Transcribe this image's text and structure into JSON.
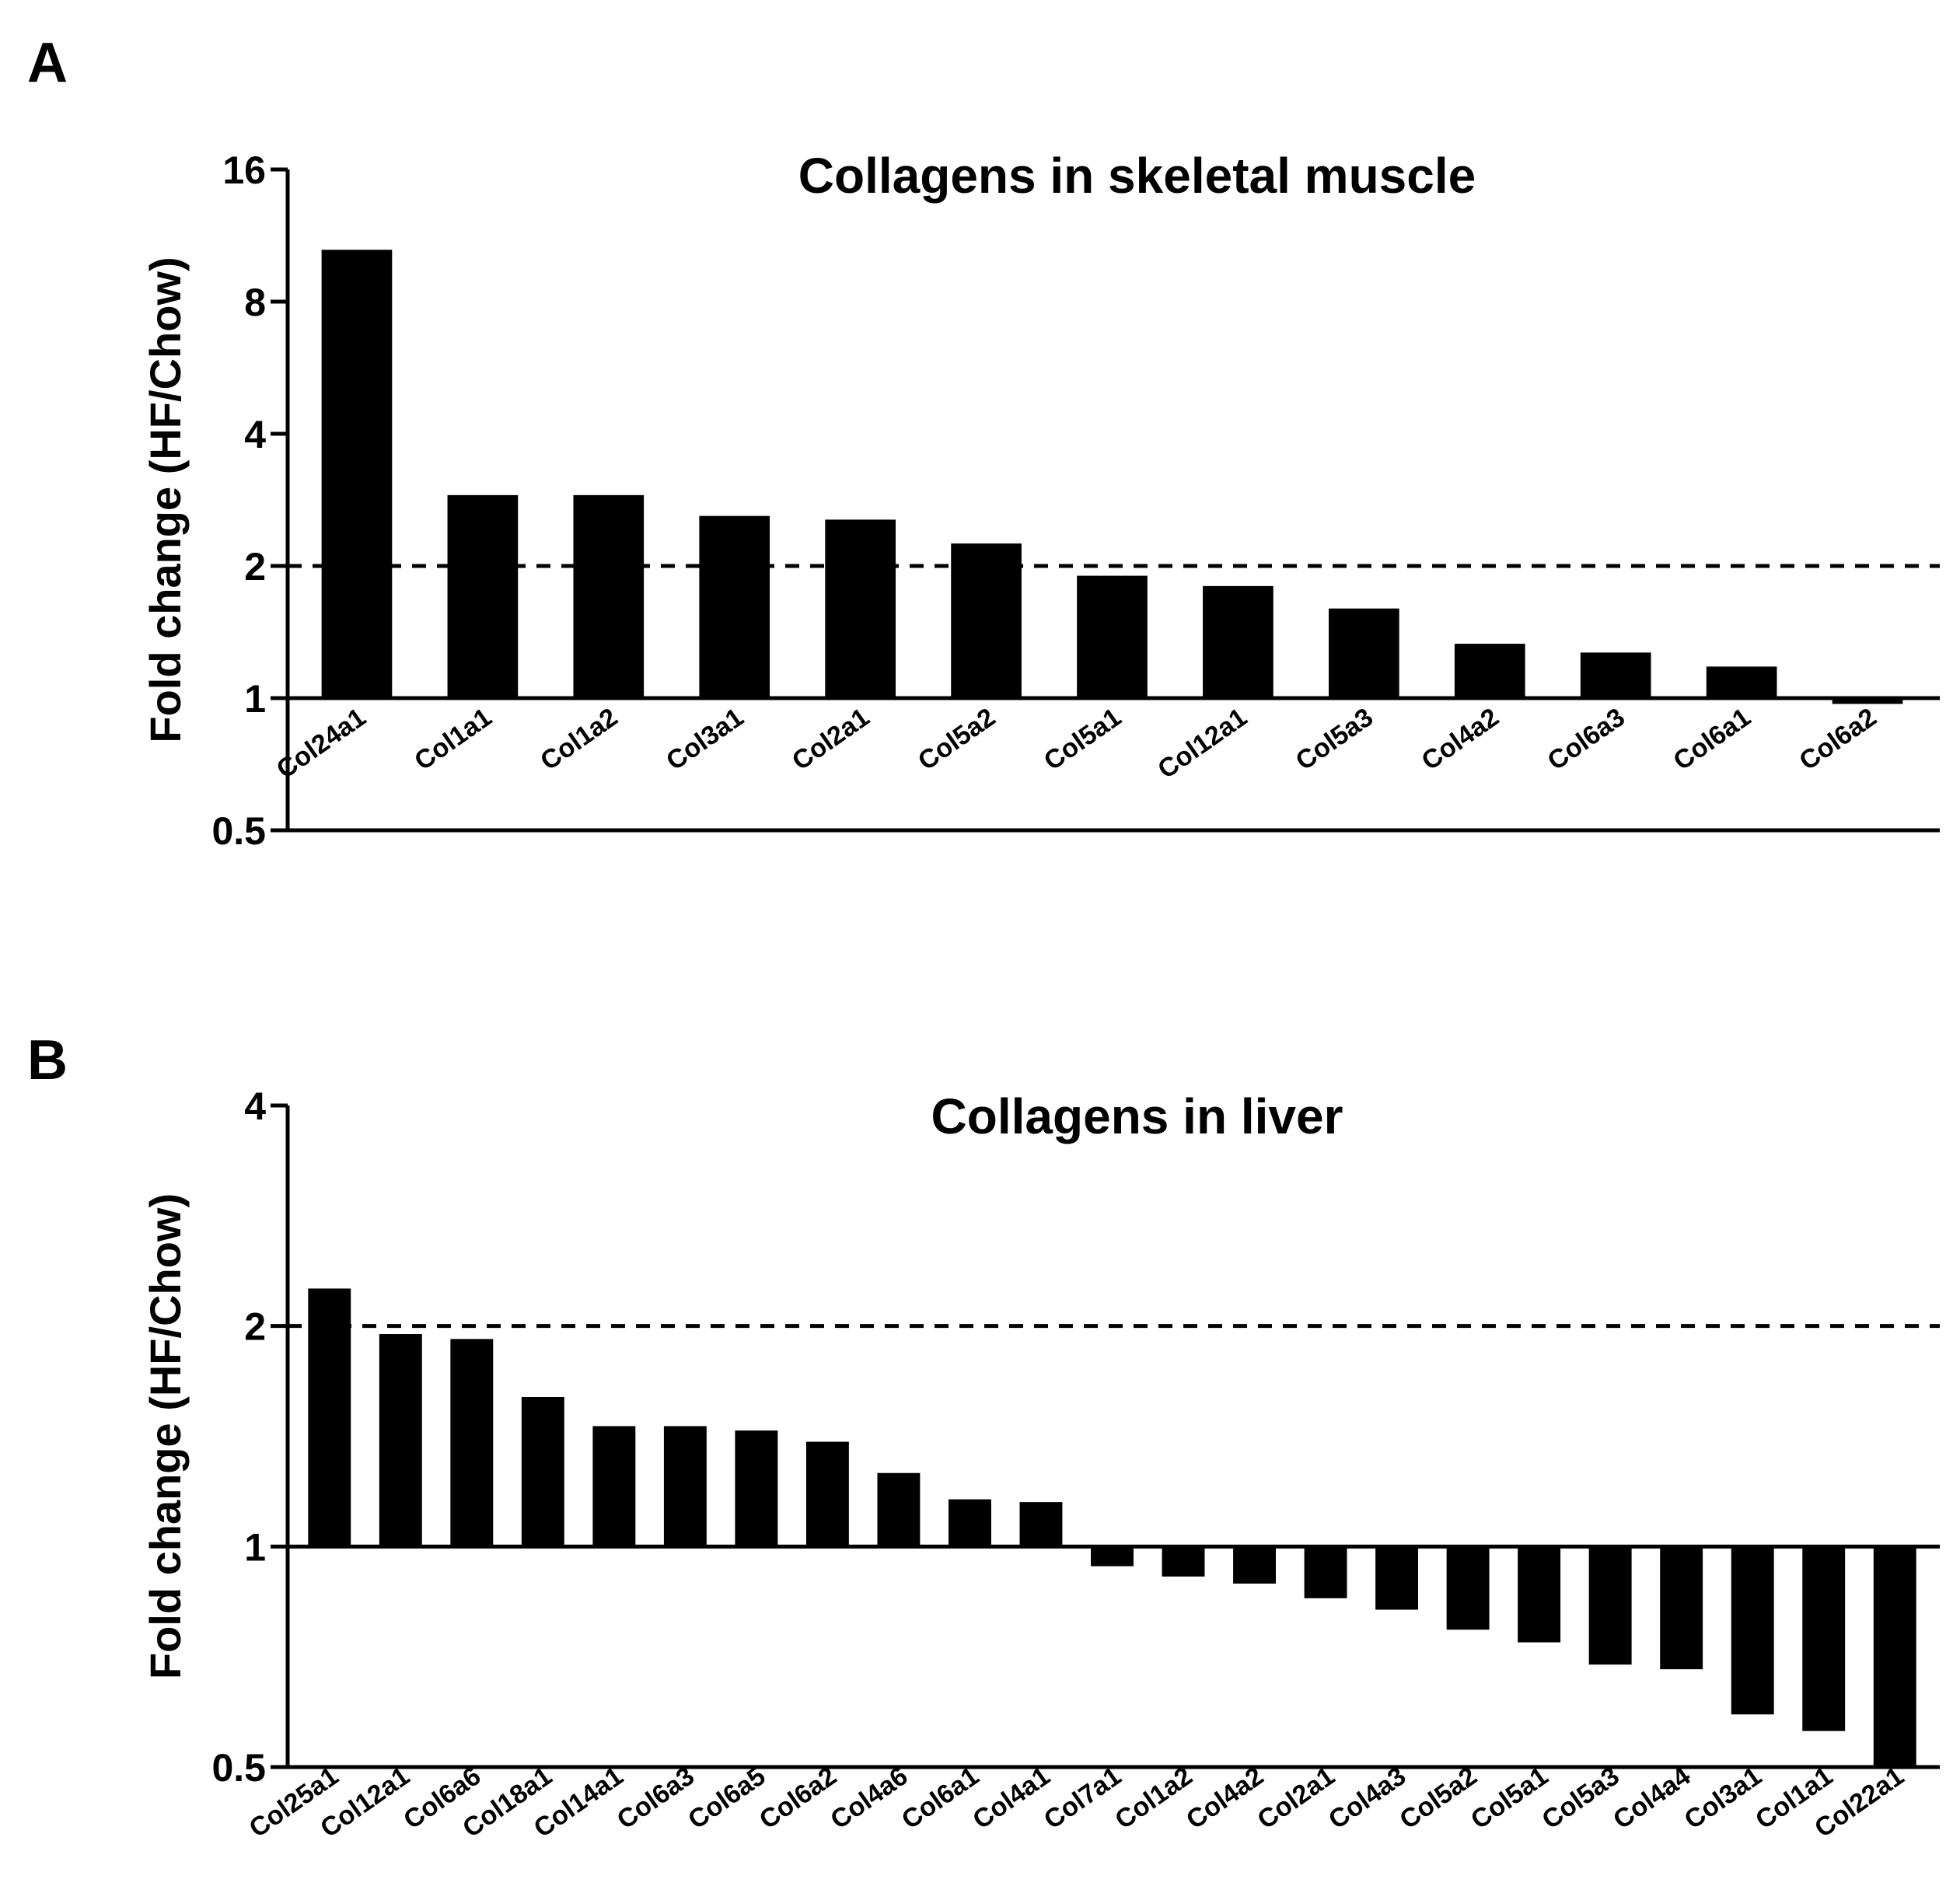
{
  "panels": [
    {
      "letter": "A",
      "chart_data": {
        "type": "bar",
        "title": "Collagens in skeletal muscle",
        "xlabel": "",
        "ylabel": "Fold change (HF/Chow)",
        "yscale": "log2",
        "ylim": [
          0.5,
          16
        ],
        "yticks": [
          0.5,
          1,
          2,
          4,
          8,
          16
        ],
        "ytick_labels": [
          "0.5",
          "1",
          "2",
          "4",
          "8",
          "16"
        ],
        "baseline": 1,
        "reference_line": 2,
        "categories": [
          "Col24a1",
          "Col1a1",
          "Col1a2",
          "Col3a1",
          "Col2a1",
          "Col5a2",
          "Col5a1",
          "Col12a1",
          "Col5a3",
          "Col4a2",
          "Col6a3",
          "Col6a1",
          "Col6a2"
        ],
        "values": [
          10.5,
          2.9,
          2.9,
          2.6,
          2.55,
          2.25,
          1.9,
          1.8,
          1.6,
          1.33,
          1.27,
          1.18,
          0.97
        ]
      }
    },
    {
      "letter": "B",
      "chart_data": {
        "type": "bar",
        "title": "Collagens in liver",
        "xlabel": "",
        "ylabel": "Fold change (HF/Chow)",
        "yscale": "log2",
        "ylim": [
          0.5,
          4
        ],
        "yticks": [
          0.5,
          1,
          2,
          4
        ],
        "ytick_labels": [
          "0.5",
          "1",
          "2",
          "4"
        ],
        "baseline": 1,
        "reference_line": 2,
        "categories": [
          "Col25a1",
          "Col12a1",
          "Col6a6",
          "Col18a1",
          "Col14a1",
          "Col6a3",
          "Col6a5",
          "Col6a2",
          "Col4a6",
          "Col6a1",
          "Col4a1",
          "Col7a1",
          "Col1a2",
          "Col4a2",
          "Col2a1",
          "Col4a3",
          "Col5a2",
          "Col5a1",
          "Col5a3",
          "Col4a4",
          "Col3a1",
          "Col1a1",
          "Col22a1"
        ],
        "values": [
          2.25,
          1.95,
          1.92,
          1.6,
          1.46,
          1.46,
          1.44,
          1.39,
          1.26,
          1.16,
          1.15,
          0.94,
          0.91,
          0.89,
          0.85,
          0.82,
          0.77,
          0.74,
          0.69,
          0.68,
          0.59,
          0.56,
          0.5
        ]
      }
    }
  ]
}
